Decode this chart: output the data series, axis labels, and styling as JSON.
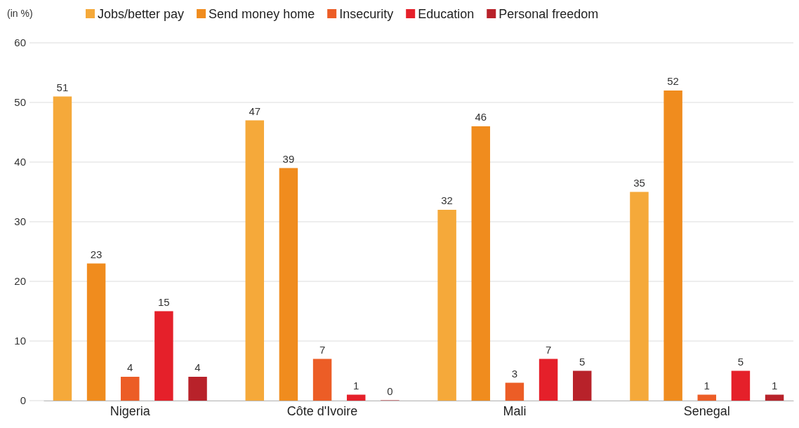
{
  "chart_data": {
    "type": "bar",
    "ylabel": "(in %)",
    "categories": [
      "Nigeria",
      "Côte d'Ivoire",
      "Mali",
      "Senegal"
    ],
    "series": [
      {
        "name": "Jobs/better pay",
        "color": "#f5a93a",
        "values": [
          51,
          47,
          32,
          35
        ]
      },
      {
        "name": "Send money home",
        "color": "#f08c1e",
        "values": [
          23,
          39,
          46,
          52
        ]
      },
      {
        "name": "Insecurity",
        "color": "#ec5d26",
        "values": [
          4,
          7,
          3,
          1
        ]
      },
      {
        "name": "Education",
        "color": "#e5202a",
        "values": [
          15,
          1,
          7,
          5
        ]
      },
      {
        "name": "Personal freedom",
        "color": "#b8222a",
        "values": [
          4,
          0,
          5,
          1
        ]
      }
    ],
    "ylim": [
      0,
      60
    ],
    "yticks": [
      0,
      10,
      20,
      30,
      40,
      50,
      60
    ],
    "grid": "y",
    "legend": "top",
    "data_labels": true
  }
}
